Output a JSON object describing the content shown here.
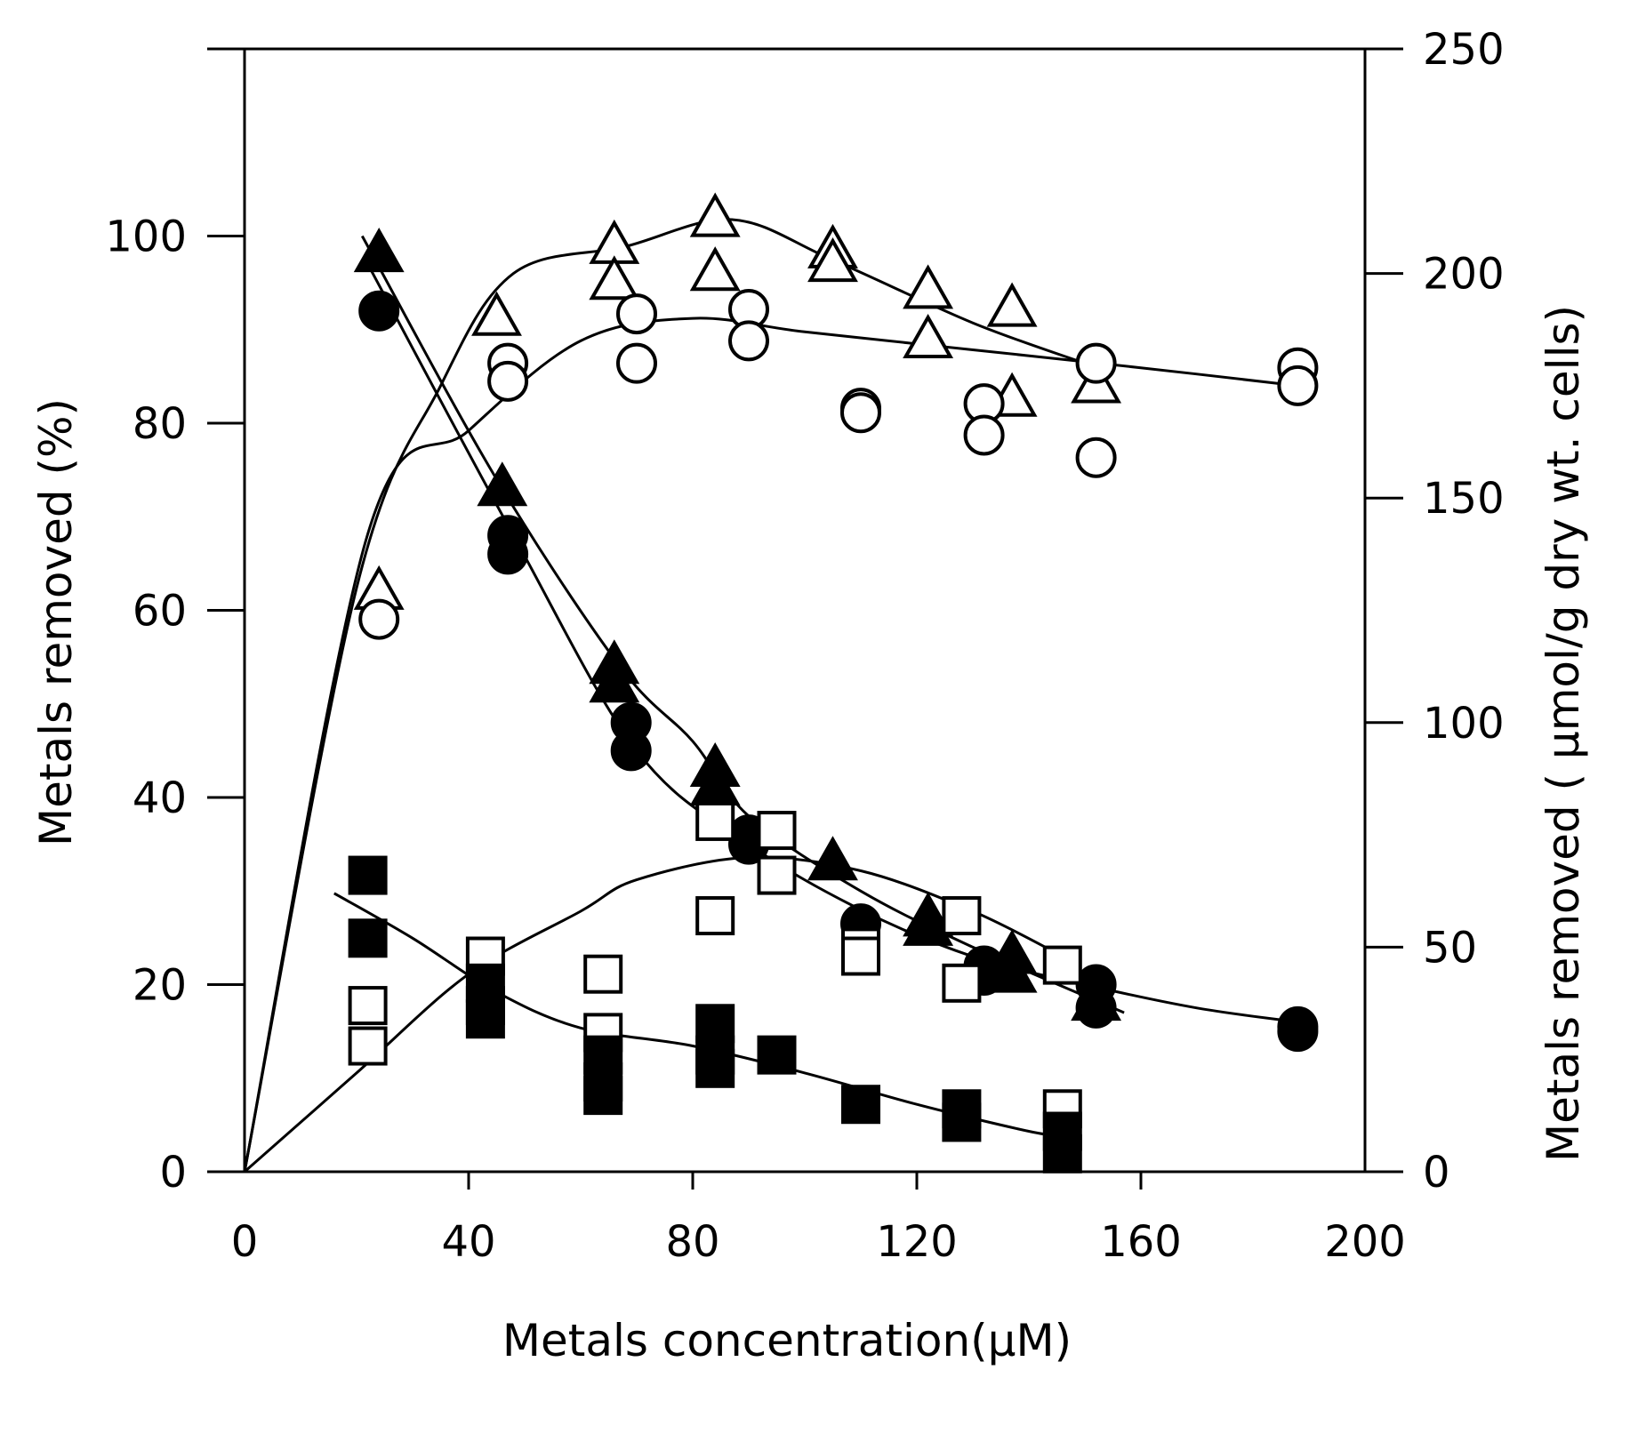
{
  "chart_data": {
    "type": "scatter",
    "xlabel": "Metals concentration(μM)",
    "ylabel_left": "Metals removed (%)",
    "ylabel_right": "Metals removed ( μmol/g dry wt. cells)",
    "xlim": [
      0,
      200
    ],
    "ylim_left": [
      0,
      120
    ],
    "ylim_right": [
      0,
      250
    ],
    "xticks": [
      "0",
      "40",
      "80",
      "120",
      "160",
      "200"
    ],
    "yticks_left": [
      "0",
      "20",
      "40",
      "60",
      "80",
      "100"
    ],
    "yticks_right": [
      "0",
      "50",
      "100",
      "150",
      "200",
      "250"
    ],
    "grid": false,
    "legend": "none",
    "series": [
      {
        "marker": "filled-triangle",
        "axis": "left",
        "points": [
          [
            24,
            98
          ],
          [
            46,
            73
          ],
          [
            66,
            54
          ],
          [
            66,
            52
          ],
          [
            84,
            43
          ],
          [
            84,
            41
          ],
          [
            105,
            33
          ],
          [
            122,
            27
          ],
          [
            122,
            26
          ],
          [
            137,
            23
          ],
          [
            137,
            21
          ],
          [
            152,
            18
          ]
        ]
      },
      {
        "marker": "filled-circle",
        "axis": "left",
        "points": [
          [
            24,
            92
          ],
          [
            47,
            68
          ],
          [
            47,
            66
          ],
          [
            69,
            48
          ],
          [
            69,
            45
          ],
          [
            90,
            36
          ],
          [
            90,
            35
          ],
          [
            110,
            26.5
          ],
          [
            132,
            22
          ],
          [
            132,
            21
          ],
          [
            152,
            20
          ],
          [
            152,
            17.5
          ],
          [
            188,
            15.5
          ],
          [
            188,
            15
          ]
        ]
      },
      {
        "marker": "open-triangle",
        "axis": "right",
        "points": [
          [
            24,
            129
          ],
          [
            45,
            190
          ],
          [
            66,
            206
          ],
          [
            66,
            198
          ],
          [
            84,
            212
          ],
          [
            84,
            200
          ],
          [
            105,
            205
          ],
          [
            105,
            202
          ],
          [
            122,
            196
          ],
          [
            122,
            185
          ],
          [
            137,
            192
          ],
          [
            137,
            172
          ],
          [
            152,
            175
          ]
        ]
      },
      {
        "marker": "open-circle",
        "axis": "right",
        "points": [
          [
            24,
            123
          ],
          [
            47,
            180
          ],
          [
            47,
            176
          ],
          [
            70,
            191
          ],
          [
            70,
            180
          ],
          [
            90,
            192
          ],
          [
            90,
            185
          ],
          [
            110,
            170
          ],
          [
            110,
            169
          ],
          [
            132,
            171
          ],
          [
            132,
            164
          ],
          [
            152,
            180
          ],
          [
            152,
            159
          ],
          [
            188,
            179
          ],
          [
            188,
            175
          ]
        ]
      },
      {
        "marker": "open-square",
        "axis": "right",
        "points": [
          [
            22,
            37
          ],
          [
            22,
            28
          ],
          [
            43,
            48
          ],
          [
            64,
            44
          ],
          [
            64,
            31
          ],
          [
            84,
            78
          ],
          [
            84,
            57
          ],
          [
            95,
            76
          ],
          [
            95,
            66
          ],
          [
            110,
            50
          ],
          [
            110,
            48
          ],
          [
            128,
            57
          ],
          [
            128,
            42
          ],
          [
            146,
            46
          ],
          [
            146,
            14
          ]
        ]
      },
      {
        "marker": "filled-square",
        "axis": "right",
        "points": [
          [
            22,
            66
          ],
          [
            22,
            52
          ],
          [
            43,
            42
          ],
          [
            43,
            37
          ],
          [
            43,
            34
          ],
          [
            64,
            26
          ],
          [
            64,
            20
          ],
          [
            64,
            17
          ],
          [
            84,
            33
          ],
          [
            84,
            26
          ],
          [
            84,
            23
          ],
          [
            95,
            26
          ],
          [
            110,
            15
          ],
          [
            128,
            14
          ],
          [
            128,
            11
          ],
          [
            146,
            9
          ],
          [
            146,
            4
          ]
        ]
      }
    ],
    "fit_lines": [
      {
        "axis": "left",
        "for": "filled-triangle",
        "points": [
          [
            21,
            100
          ],
          [
            45,
            74
          ],
          [
            67,
            54
          ],
          [
            80,
            46
          ],
          [
            90,
            38
          ],
          [
            110,
            30
          ],
          [
            130,
            24
          ],
          [
            157,
            17
          ]
        ]
      },
      {
        "axis": "left",
        "for": "filled-circle",
        "points": [
          [
            22,
            97
          ],
          [
            48,
            68
          ],
          [
            70,
            45
          ],
          [
            90,
            35
          ],
          [
            110,
            28
          ],
          [
            130,
            23
          ],
          [
            150,
            20
          ],
          [
            170,
            17.5
          ],
          [
            188,
            16
          ]
        ]
      },
      {
        "axis": "right",
        "for": "open-triangle",
        "points": [
          [
            0,
            0
          ],
          [
            20,
            130
          ],
          [
            35,
            175
          ],
          [
            48,
            200
          ],
          [
            68,
            206
          ],
          [
            87,
            212
          ],
          [
            105,
            203
          ],
          [
            130,
            189
          ],
          [
            150,
            180
          ]
        ]
      },
      {
        "axis": "right",
        "for": "open-circle",
        "points": [
          [
            0,
            0
          ],
          [
            22,
            142
          ],
          [
            40,
            165
          ],
          [
            60,
            185
          ],
          [
            80,
            190
          ],
          [
            100,
            187
          ],
          [
            130,
            183
          ],
          [
            160,
            179
          ],
          [
            188,
            175
          ]
        ]
      },
      {
        "axis": "right",
        "for": "open-square",
        "points": [
          [
            0,
            0
          ],
          [
            20,
            22
          ],
          [
            40,
            44
          ],
          [
            60,
            58
          ],
          [
            70,
            65
          ],
          [
            90,
            70
          ],
          [
            110,
            67
          ],
          [
            130,
            58
          ],
          [
            146,
            48
          ]
        ]
      },
      {
        "axis": "right",
        "for": "filled-square",
        "points": [
          [
            16,
            62
          ],
          [
            30,
            52
          ],
          [
            45,
            40
          ],
          [
            60,
            32
          ],
          [
            80,
            28
          ],
          [
            100,
            22
          ],
          [
            120,
            15
          ],
          [
            140,
            9
          ],
          [
            146,
            8
          ]
        ]
      }
    ]
  }
}
